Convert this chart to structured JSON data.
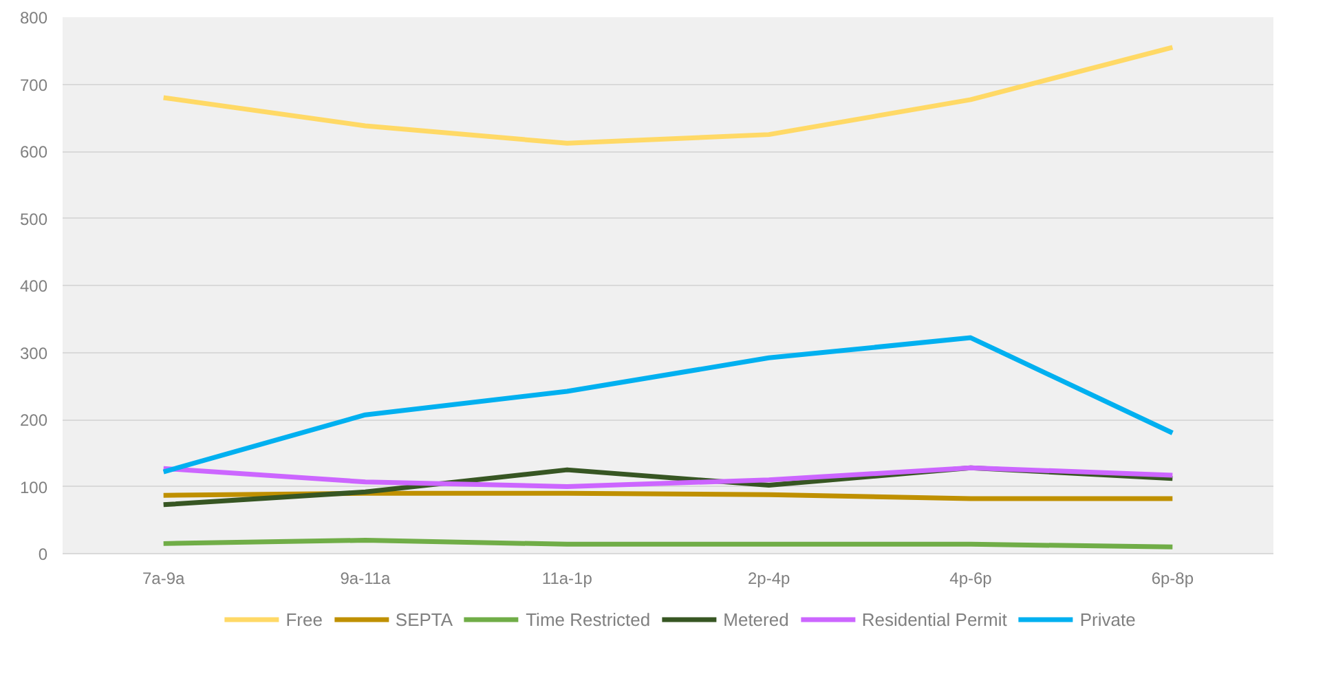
{
  "chart_data": {
    "type": "line",
    "categories": [
      "7a-9a",
      "9a-11a",
      "11a-1p",
      "2p-4p",
      "4p-6p",
      "6p-8p"
    ],
    "ylim": [
      0,
      800
    ],
    "yticks": [
      0,
      100,
      200,
      300,
      400,
      500,
      600,
      700,
      800
    ],
    "grid": "y",
    "legend": "bottom",
    "marker": "none",
    "line_style": "solid",
    "series": [
      {
        "name": "Free",
        "color": "#ffd966",
        "values": [
          680,
          638,
          612,
          625,
          677,
          755
        ]
      },
      {
        "name": "SEPTA",
        "color": "#bf9000",
        "values": [
          87,
          90,
          90,
          88,
          82,
          82
        ]
      },
      {
        "name": "Time Restricted",
        "color": "#70ad47",
        "values": [
          15,
          20,
          14,
          14,
          14,
          10
        ]
      },
      {
        "name": "Metered",
        "color": "#375623",
        "values": [
          73,
          92,
          125,
          102,
          128,
          112
        ]
      },
      {
        "name": "Residential Permit",
        "color": "#cc66ff",
        "values": [
          127,
          107,
          100,
          110,
          128,
          117
        ]
      },
      {
        "name": "Private",
        "color": "#00b0f0",
        "values": [
          122,
          207,
          242,
          292,
          322,
          180
        ]
      }
    ]
  }
}
